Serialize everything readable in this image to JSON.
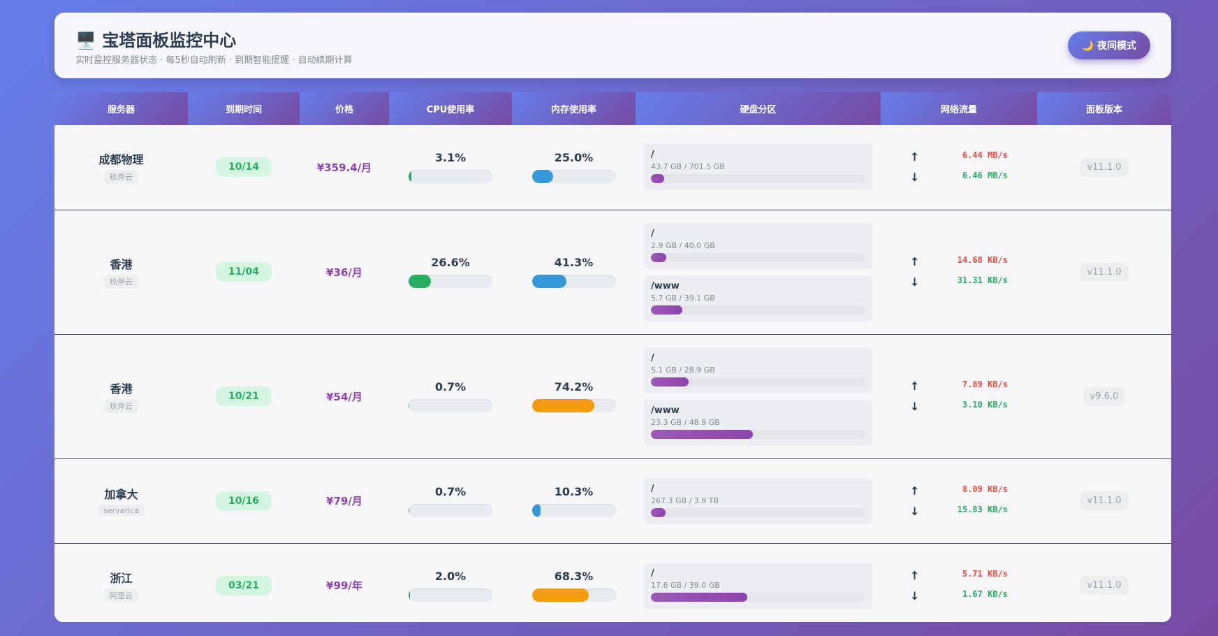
{
  "header": {
    "title": "🖥️ 宝塔面板监控中心",
    "subtitle": "实时监控服务器状态 · 每5秒自动刷新 · 到期智能提醒 · 自动续期计算",
    "theme_button": "🌙 夜间模式"
  },
  "icons": {
    "up": "↑",
    "down": "↓"
  },
  "table": {
    "columns": [
      "服务器",
      "到期时间",
      "价格",
      "CPU使用率",
      "内存使用率",
      "硬盘分区",
      "网络流量",
      "面板版本"
    ],
    "rows": [
      {
        "name": "成都物理",
        "provider": "玖伴云",
        "expiry": "10/14",
        "price": "¥359.4/月",
        "cpu": {
          "value": 3.1,
          "label": "3.1%",
          "color": "#27ae60"
        },
        "memory": {
          "value": 25.0,
          "label": "25.0%",
          "color": "#3498db"
        },
        "disks": [
          {
            "mount": "/",
            "usage": "43.7 GB / 701.5 GB",
            "percent": 6.2
          }
        ],
        "upload": "6.44 MB/s",
        "download": "6.46 MB/s",
        "version": "v11.1.0"
      },
      {
        "name": "香港",
        "provider": "玖伴云",
        "expiry": "11/04",
        "price": "¥36/月",
        "cpu": {
          "value": 26.6,
          "label": "26.6%",
          "color": "#27ae60"
        },
        "memory": {
          "value": 41.3,
          "label": "41.3%",
          "color": "#3498db"
        },
        "disks": [
          {
            "mount": "/",
            "usage": "2.9 GB / 40.0 GB",
            "percent": 7.3
          },
          {
            "mount": "/www",
            "usage": "5.7 GB / 39.1 GB",
            "percent": 14.6
          }
        ],
        "upload": "14.68 KB/s",
        "download": "31.31 KB/s",
        "version": "v11.1.0"
      },
      {
        "name": "香港",
        "provider": "玖伴云",
        "expiry": "10/21",
        "price": "¥54/月",
        "cpu": {
          "value": 0.7,
          "label": "0.7%",
          "color": "#27ae60"
        },
        "memory": {
          "value": 74.2,
          "label": "74.2%",
          "color": "#f39c12"
        },
        "disks": [
          {
            "mount": "/",
            "usage": "5.1 GB / 28.9 GB",
            "percent": 17.6
          },
          {
            "mount": "/www",
            "usage": "23.3 GB / 48.9 GB",
            "percent": 47.6
          }
        ],
        "upload": "7.89 KB/s",
        "download": "3.10 KB/s",
        "version": "v9.6.0"
      },
      {
        "name": "加拿大",
        "provider": "servarica",
        "expiry": "10/16",
        "price": "¥79/月",
        "cpu": {
          "value": 0.7,
          "label": "0.7%",
          "color": "#27ae60"
        },
        "memory": {
          "value": 10.3,
          "label": "10.3%",
          "color": "#3498db"
        },
        "disks": [
          {
            "mount": "/",
            "usage": "267.3 GB / 3.9 TB",
            "percent": 6.7
          }
        ],
        "upload": "8.09 KB/s",
        "download": "15.83 KB/s",
        "version": "v11.1.0"
      },
      {
        "name": "浙江",
        "provider": "阿里云",
        "expiry": "03/21",
        "price": "¥99/年",
        "cpu": {
          "value": 2.0,
          "label": "2.0%",
          "color": "#27ae60"
        },
        "memory": {
          "value": 68.3,
          "label": "68.3%",
          "color": "#f39c12"
        },
        "disks": [
          {
            "mount": "/",
            "usage": "17.6 GB / 39.0 GB",
            "percent": 45.1
          }
        ],
        "upload": "5.71 KB/s",
        "download": "1.67 KB/s",
        "version": "v11.1.0"
      }
    ]
  }
}
